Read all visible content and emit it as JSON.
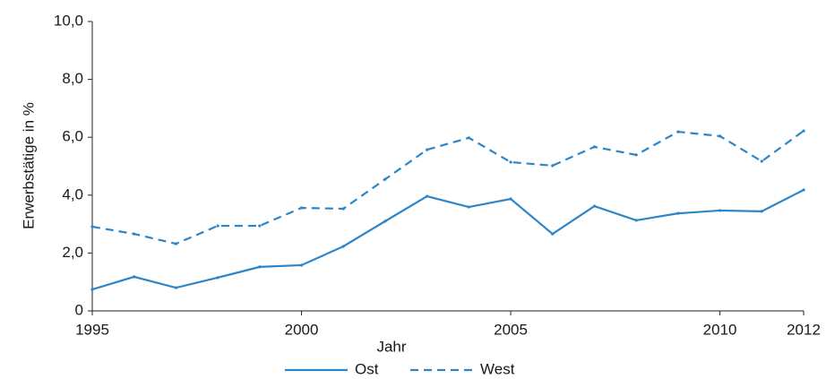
{
  "chart_data": {
    "type": "line",
    "x_label": "Jahr",
    "y_label": "Erwerbstätige in %",
    "x": [
      1995,
      1996,
      1997,
      1998,
      1999,
      2000,
      2001,
      2002,
      2003,
      2004,
      2005,
      2006,
      2007,
      2008,
      2009,
      2010,
      2011,
      2012
    ],
    "series": [
      {
        "name": "Ost",
        "color": "#2c85c6",
        "line_style": "solid",
        "values": [
          0.74,
          1.18,
          0.8,
          1.15,
          1.52,
          1.58,
          2.23,
          3.1,
          3.96,
          3.59,
          3.87,
          2.66,
          3.62,
          3.13,
          3.37,
          3.47,
          3.44,
          4.18
        ]
      },
      {
        "name": "West",
        "color": "#2c85c6",
        "line_style": "dashed",
        "values": [
          2.91,
          2.66,
          2.32,
          2.94,
          2.94,
          3.56,
          3.53,
          4.55,
          5.57,
          5.98,
          5.14,
          5.02,
          5.67,
          5.39,
          6.19,
          6.04,
          5.17,
          6.22
        ]
      }
    ],
    "xlim": [
      1995,
      2012
    ],
    "xticks": [
      1995,
      2000,
      2005,
      2010,
      2012
    ],
    "ylim": [
      0,
      10
    ],
    "yticks": [
      0,
      {
        "value": 2,
        "label": "2,0"
      },
      {
        "value": 4,
        "label": "4,0"
      },
      {
        "value": 6,
        "label": "6,0"
      },
      {
        "value": 8,
        "label": "8,0"
      },
      {
        "value": 10,
        "label": "10,0"
      }
    ],
    "grid": false,
    "legend": "bottom"
  }
}
